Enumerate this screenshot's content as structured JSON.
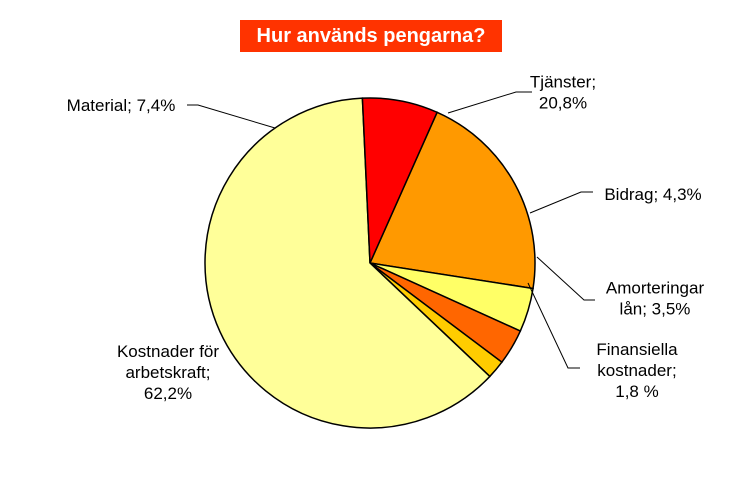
{
  "chart_data": {
    "type": "pie",
    "title": "Hur används pengarna?",
    "title_bg": "#ff3300",
    "slices": [
      {
        "name": "Tjänster",
        "value": 20.8,
        "color": "#ff9900",
        "label": [
          "Tjänster;",
          "20,8%"
        ]
      },
      {
        "name": "Bidrag",
        "value": 4.3,
        "color": "#ffff66",
        "label": [
          "Bidrag; 4,3%"
        ]
      },
      {
        "name": "Amorteringar lån",
        "value": 3.5,
        "color": "#ff6600",
        "label": [
          "Amorteringar",
          "lån; 3,5%"
        ]
      },
      {
        "name": "Finansiella kostnader",
        "value": 1.8,
        "color": "#ffcc00",
        "label": [
          "Finansiella",
          "kostnader;",
          "1,8 %"
        ]
      },
      {
        "name": "Kostnader för arbetskraft",
        "value": 62.2,
        "color": "#ffff99",
        "label": [
          "Kostnader för",
          "arbetskraft;",
          "62,2%"
        ]
      },
      {
        "name": "Material",
        "value": 7.4,
        "color": "#ff0000",
        "label": [
          "Material; 7,4%"
        ]
      }
    ]
  }
}
